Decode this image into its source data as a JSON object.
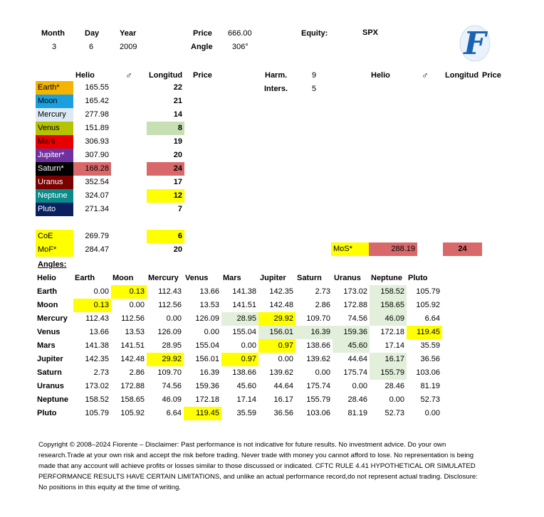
{
  "header": {
    "month_label": "Month",
    "month_value": "3",
    "day_label": "Day",
    "day_value": "6",
    "year_label": "Year",
    "year_value": "2009",
    "price_label": "Price",
    "price_value": "666.00",
    "angle_label": "Angle",
    "angle_value": "306°",
    "equity_label": "Equity:",
    "equity_value": "SPX",
    "logo_letter": "F"
  },
  "planet_table": {
    "col_helio": "Helio",
    "col_mars_symbol": "♂",
    "col_longitude": "Longitud",
    "col_price": "Price",
    "rows": [
      {
        "name": "Earth*",
        "helio": "165.55",
        "longitude": "22",
        "bg": "#f5b400",
        "fg": "#000000",
        "lon_bg": ""
      },
      {
        "name": "Moon",
        "helio": "165.42",
        "longitude": "21",
        "bg": "#1aa0e0",
        "fg": "#000000",
        "lon_bg": ""
      },
      {
        "name": "Mercury",
        "helio": "277.98",
        "longitude": "14",
        "bg": "#dce9f6",
        "fg": "#000000",
        "lon_bg": ""
      },
      {
        "name": "Venus",
        "helio": "151.89",
        "longitude": "8",
        "bg": "#b5c300",
        "fg": "#000000",
        "lon_bg": "#c6e0b4"
      },
      {
        "name": "Mars",
        "helio": "306.93",
        "longitude": "19",
        "bg": "#e80000",
        "fg": "#000000",
        "lon_bg": ""
      },
      {
        "name": "Jupiter*",
        "helio": "307.90",
        "longitude": "20",
        "bg": "#7030a0",
        "fg": "#ffffff",
        "lon_bg": ""
      },
      {
        "name": "Saturn*",
        "helio": "168.28",
        "longitude": "24",
        "bg": "#000000",
        "fg": "#ffffff",
        "lon_bg": "#d9686a",
        "helio_bg": "#d9686a"
      },
      {
        "name": "Uranus",
        "helio": "352.54",
        "longitude": "17",
        "bg": "#7b0000",
        "fg": "#ffffff",
        "lon_bg": ""
      },
      {
        "name": "Neptune",
        "helio": "324.07",
        "longitude": "12",
        "bg": "#0b8a8a",
        "fg": "#ffffff",
        "lon_bg": "#ffff00"
      },
      {
        "name": "Pluto",
        "helio": "271.34",
        "longitude": "7",
        "bg": "#0a2060",
        "fg": "#ffffff",
        "lon_bg": ""
      }
    ],
    "extra_rows": [
      {
        "name": "CoE",
        "helio": "269.79",
        "longitude": "6",
        "bg": "#ffff00",
        "fg": "#000000",
        "lon_bg": "#ffff00"
      },
      {
        "name": "MoF*",
        "helio": "284.47",
        "longitude": "20",
        "bg": "#ffff00",
        "fg": "#000000",
        "lon_bg": ""
      }
    ]
  },
  "harmonics": {
    "harm_label": "Harm.",
    "harm_value": "9",
    "inters_label": "Inters.",
    "inters_value": "5"
  },
  "right_table": {
    "col_helio": "Helio",
    "col_mars_symbol": "♂",
    "col_longitude": "Longitud",
    "col_price": "Price",
    "mos_label": "MoS*",
    "mos_helio": "288.19",
    "mos_longitude": "24"
  },
  "angles": {
    "title": "Angles:",
    "corner": "Helio",
    "columns": [
      "Earth",
      "Moon",
      "Mercury",
      "Venus",
      "Mars",
      "Jupiter",
      "Saturn",
      "Uranus",
      "Neptune",
      "Pluto"
    ],
    "rows": [
      {
        "name": "Earth",
        "values": [
          "0.00",
          "0.13",
          "112.43",
          "13.66",
          "141.38",
          "142.35",
          "2.73",
          "173.02",
          "158.52",
          "105.79"
        ]
      },
      {
        "name": "Moon",
        "values": [
          "0.13",
          "0.00",
          "112.56",
          "13.53",
          "141.51",
          "142.48",
          "2.86",
          "172.88",
          "158.65",
          "105.92"
        ]
      },
      {
        "name": "Mercury",
        "values": [
          "112.43",
          "112.56",
          "0.00",
          "126.09",
          "28.95",
          "29.92",
          "109.70",
          "74.56",
          "46.09",
          "6.64"
        ]
      },
      {
        "name": "Venus",
        "values": [
          "13.66",
          "13.53",
          "126.09",
          "0.00",
          "155.04",
          "156.01",
          "16.39",
          "159.36",
          "172.18",
          "119.45"
        ]
      },
      {
        "name": "Mars",
        "values": [
          "141.38",
          "141.51",
          "28.95",
          "155.04",
          "0.00",
          "0.97",
          "138.66",
          "45.60",
          "17.14",
          "35.59"
        ]
      },
      {
        "name": "Jupiter",
        "values": [
          "142.35",
          "142.48",
          "29.92",
          "156.01",
          "0.97",
          "0.00",
          "139.62",
          "44.64",
          "16.17",
          "36.56"
        ]
      },
      {
        "name": "Saturn",
        "values": [
          "2.73",
          "2.86",
          "109.70",
          "16.39",
          "138.66",
          "139.62",
          "0.00",
          "175.74",
          "155.79",
          "103.06"
        ]
      },
      {
        "name": "Uranus",
        "values": [
          "173.02",
          "172.88",
          "74.56",
          "159.36",
          "45.60",
          "44.64",
          "175.74",
          "0.00",
          "28.46",
          "81.19"
        ]
      },
      {
        "name": "Neptune",
        "values": [
          "158.52",
          "158.65",
          "46.09",
          "172.18",
          "17.14",
          "16.17",
          "155.79",
          "28.46",
          "0.00",
          "52.73"
        ]
      },
      {
        "name": "Pluto",
        "values": [
          "105.79",
          "105.92",
          "6.64",
          "119.45",
          "35.59",
          "36.56",
          "103.06",
          "81.19",
          "52.73",
          "0.00"
        ]
      }
    ],
    "highlights": {
      "yellow": [
        "0-1",
        "1-0",
        "2-5",
        "3-9",
        "4-5",
        "5-2",
        "5-4",
        "9-3"
      ],
      "green": [
        "0-8",
        "1-8",
        "2-4",
        "2-8",
        "3-5",
        "3-6",
        "3-7",
        "4-7",
        "5-8",
        "6-8"
      ]
    },
    "colors": {
      "yellow": "#ffff00",
      "green": "#e2efda"
    }
  },
  "footer": {
    "copyright": "Copyright © 2008–2024 Fiorente – Disclaimer: Past performance is not indicative for future results. No investment advice. Do your own research.Trade at your own risk and accept the risk before trading. Never trade with money you cannot afford to lose. No representation is being made that any account will achieve profits or losses similar to those discussed or indicated. CFTC RULE 4.41 HYPOTHETICAL OR SIMULATED PERFORMANCE RESULTS HAVE CERTAIN LIMITATIONS, and unlike an actual performance record,do not represent actual trading. Disclosure: No positions in this equity at the time of writing."
  }
}
